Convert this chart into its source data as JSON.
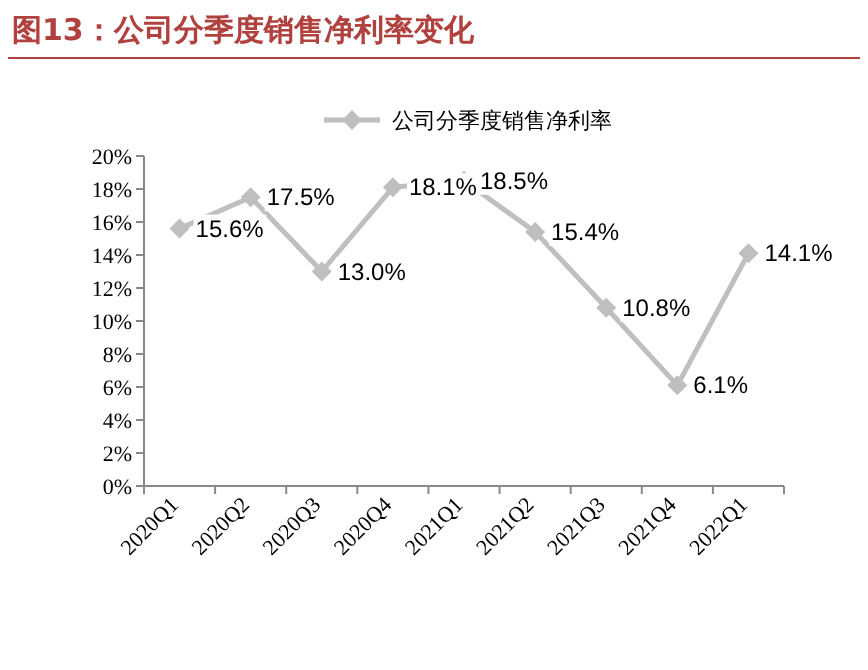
{
  "chart_data": {
    "type": "line",
    "title": "图13：公司分季度销售净利率变化",
    "categories": [
      "2020Q1",
      "2020Q2",
      "2020Q3",
      "2020Q4",
      "2021Q1",
      "2021Q2",
      "2021Q3",
      "2021Q4",
      "2022Q1"
    ],
    "series": [
      {
        "name": "公司分季度销售净利率",
        "color": "#bfbfbf",
        "values": [
          15.6,
          17.5,
          13.0,
          18.1,
          18.5,
          15.4,
          10.8,
          6.1,
          14.1
        ],
        "value_labels": [
          "15.6%",
          "17.5%",
          "13.0%",
          "18.1%",
          "18.5%",
          "15.4%",
          "10.8%",
          "6.1%",
          "14.1%"
        ]
      }
    ],
    "ylim": [
      0,
      20
    ],
    "yticks": [
      {
        "value": 0,
        "label": "0%"
      },
      {
        "value": 2,
        "label": "2%"
      },
      {
        "value": 4,
        "label": "4%"
      },
      {
        "value": 6,
        "label": "6%"
      },
      {
        "value": 8,
        "label": "8%"
      },
      {
        "value": 10,
        "label": "10%"
      },
      {
        "value": 12,
        "label": "12%"
      },
      {
        "value": 14,
        "label": "14%"
      },
      {
        "value": 16,
        "label": "16%"
      },
      {
        "value": 18,
        "label": "18%"
      },
      {
        "value": 20,
        "label": "20%"
      }
    ],
    "grid": false,
    "legend": "top",
    "marker": "diamond",
    "line_style": "solid"
  }
}
